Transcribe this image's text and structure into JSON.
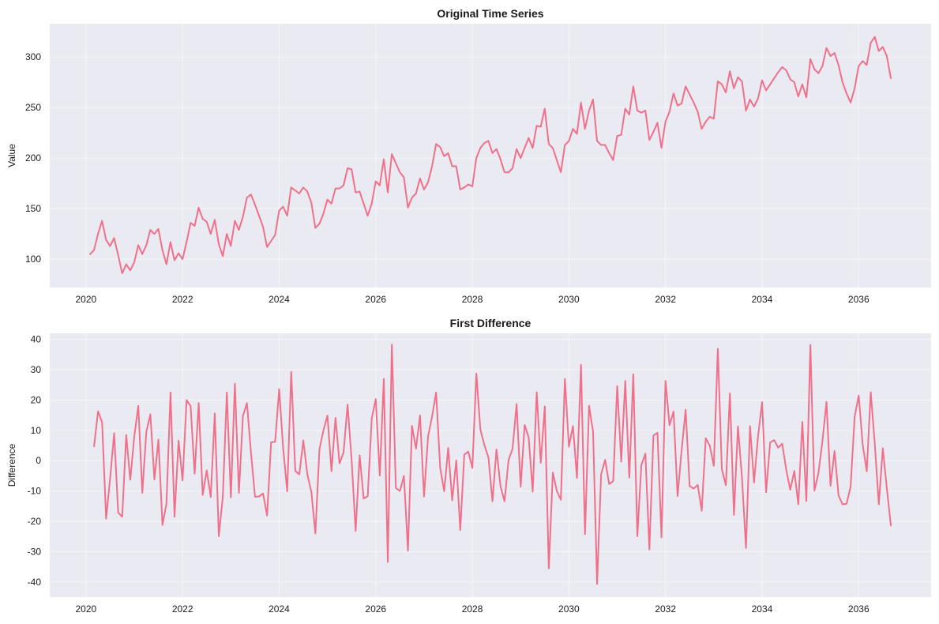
{
  "colors": {
    "panel_bg": "#eaeaf2",
    "line": "#f0708a",
    "grid": "#ffffff"
  },
  "chart_data": [
    {
      "type": "line",
      "title": "Original Time Series",
      "xlabel": "",
      "ylabel": "Value",
      "x_ticks": [
        "2020",
        "2022",
        "2024",
        "2026",
        "2028",
        "2030",
        "2032",
        "2034",
        "2036"
      ],
      "y_ticks": [
        100,
        150,
        200,
        250,
        300
      ],
      "xlim": [
        2019.25,
        2037.5
      ],
      "ylim": [
        72,
        333
      ],
      "grid": true,
      "x_start": 2020.083,
      "x_step_months": 1,
      "values": [
        105,
        109,
        125,
        138,
        119,
        113,
        121,
        104,
        86,
        95,
        89,
        97,
        114,
        105,
        114,
        129,
        125,
        130,
        109,
        95,
        117,
        99,
        106,
        100,
        117,
        136,
        133,
        151,
        140,
        137,
        125,
        139,
        115,
        103,
        125,
        113,
        138,
        129,
        142,
        161,
        164,
        154,
        143,
        132,
        112,
        118,
        124,
        148,
        152,
        143,
        171,
        168,
        165,
        171,
        167,
        156,
        131,
        135,
        145,
        159,
        155,
        170,
        170,
        173,
        190,
        189,
        166,
        167,
        155,
        143,
        155,
        177,
        173,
        199,
        166,
        204,
        195,
        186,
        181,
        151,
        161,
        165,
        180,
        169,
        176,
        192,
        214,
        211,
        202,
        205,
        192,
        192,
        169,
        171,
        174,
        172,
        200,
        210,
        215,
        217,
        205,
        209,
        199,
        186,
        186,
        190,
        209,
        200,
        210,
        220,
        210,
        232,
        231,
        249,
        214,
        210,
        198,
        186,
        213,
        217,
        229,
        224,
        255,
        229,
        247,
        258,
        217,
        213,
        213,
        205,
        198,
        222,
        223,
        249,
        243,
        271,
        247,
        245,
        247,
        218,
        226,
        235,
        210,
        236,
        246,
        264,
        252,
        254,
        271,
        263,
        255,
        246,
        229,
        236,
        241,
        239,
        276,
        273,
        265,
        286,
        269,
        280,
        276,
        247,
        258,
        251,
        259,
        277,
        267,
        273,
        279,
        285,
        290,
        287,
        278,
        275,
        261,
        273,
        260,
        298,
        288,
        284,
        291,
        309,
        301,
        304,
        292,
        275,
        264,
        255,
        269,
        291,
        296,
        292,
        314,
        320,
        306,
        310,
        301,
        279
      ]
    },
    {
      "type": "line",
      "title": "First Difference",
      "xlabel": "",
      "ylabel": "Difference",
      "x_ticks": [
        "2020",
        "2022",
        "2024",
        "2026",
        "2028",
        "2030",
        "2032",
        "2034",
        "2036"
      ],
      "y_ticks": [
        -40,
        -30,
        -20,
        -10,
        0,
        10,
        20,
        30,
        40
      ],
      "xlim": [
        2019.25,
        2037.5
      ],
      "ylim": [
        -45,
        42
      ],
      "grid": true,
      "x_start": 2020.167,
      "x_step_months": 1,
      "values": [
        4.7,
        16.3,
        12.7,
        -19.1,
        -5.8,
        9.1,
        -17.1,
        -18.5,
        8.5,
        -6.3,
        8.0,
        18.1,
        -10.6,
        9.6,
        15.3,
        -6.2,
        7.0,
        -21.2,
        -14.1,
        22.5,
        -18.5,
        6.6,
        -6.5,
        20.0,
        18.0,
        -4.3,
        19.0,
        -11.3,
        -3.2,
        -12.0,
        15.6,
        -24.9,
        -11.9,
        22.5,
        -12.1,
        25.4,
        -10.6,
        14.8,
        19.0,
        2.6,
        -11.9,
        -11.8,
        -10.8,
        -18.1,
        6.1,
        6.2,
        23.6,
        4.0,
        -10.1,
        29.3,
        -3.4,
        -4.5,
        6.7,
        -4.5,
        -10.3,
        -24.0,
        3.7,
        10.0,
        14.9,
        -3.5,
        14.1,
        -0.9,
        2.7,
        18.5,
        0.3,
        -23.2,
        1.8,
        -12.5,
        -11.7,
        13.9,
        20.3,
        -4.9,
        27.0,
        -33.4,
        38.3,
        -9.0,
        -10.0,
        -5.0,
        -29.7,
        11.5,
        4.0,
        14.9,
        -11.8,
        8.0,
        14.6,
        22.5,
        -2.2,
        -10.1,
        4.2,
        -13.1,
        0.1,
        -22.9,
        2.0,
        3.0,
        -2.4,
        28.7,
        10.3,
        5.1,
        1.1,
        -13.4,
        3.7,
        -8.4,
        -13.4,
        0.2,
        4.0,
        18.7,
        -8.6,
        11.8,
        7.7,
        -10.2,
        22.6,
        -0.7,
        17.9,
        -35.5,
        -3.9,
        -10.0,
        -12.9,
        27.0,
        4.6,
        11.4,
        -5.7,
        31.6,
        -24.2,
        18.1,
        9.6,
        -40.7,
        -4.5,
        0.3,
        -7.7,
        -6.7,
        24.6,
        -0.3,
        26.3,
        -5.6,
        28.5,
        -24.9,
        -1.4,
        2.3,
        -29.3,
        8.3,
        9.2,
        -25.3,
        26.3,
        11.7,
        16.2,
        -11.7,
        3.4,
        16.8,
        -8.4,
        -9.2,
        -8.0,
        -16.5,
        7.4,
        5.0,
        -1.7,
        36.9,
        -2.8,
        -8.1,
        22.2,
        -17.9,
        11.3,
        -5.6,
        -28.8,
        11.4,
        -7.2,
        8.2,
        19.3,
        -10.4,
        6.0,
        6.8,
        4.3,
        5.6,
        -3.0,
        -9.6,
        -3.4,
        -14.4,
        12.8,
        -13.3,
        38.2,
        -9.9,
        -4.1,
        6.5,
        19.4,
        -8.3,
        3.2,
        -11.5,
        -14.4,
        -14.2,
        -8.5,
        14.5,
        21.5,
        5.3,
        -3.5,
        22.6,
        5.6,
        -14.4,
        4.1,
        -9.2,
        -21.4
      ]
    }
  ]
}
